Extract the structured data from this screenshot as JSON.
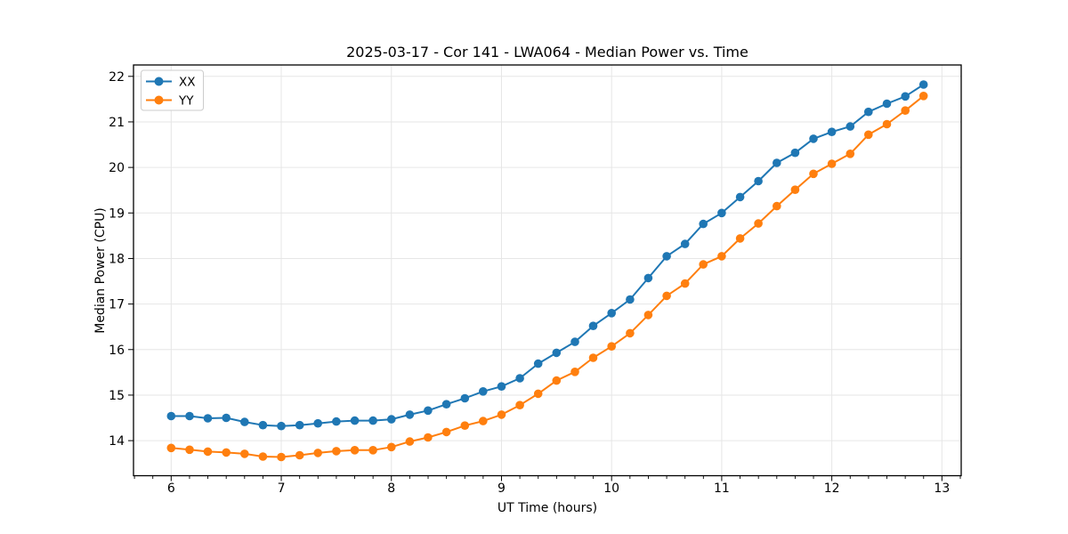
{
  "figure": {
    "background": "#ffffff",
    "text_color": "#000000",
    "spine_color": "#000000"
  },
  "chart_data": {
    "type": "line",
    "title": "2025-03-17 - Cor 141 - LWA064 - Median Power vs. Time",
    "xlabel": "UT Time (hours)",
    "ylabel": "Median Power (CPU)",
    "x": [
      6.0,
      6.167,
      6.333,
      6.5,
      6.667,
      6.833,
      7.0,
      7.167,
      7.333,
      7.5,
      7.667,
      7.833,
      8.0,
      8.167,
      8.333,
      8.5,
      8.667,
      8.833,
      9.0,
      9.167,
      9.333,
      9.5,
      9.667,
      9.833,
      10.0,
      10.167,
      10.333,
      10.5,
      10.667,
      10.833,
      11.0,
      11.167,
      11.333,
      11.5,
      11.667,
      11.833,
      12.0,
      12.167,
      12.333,
      12.5,
      12.667,
      12.833
    ],
    "series": [
      {
        "name": "XX",
        "color": "#1f77b4",
        "values": [
          14.54,
          14.54,
          14.49,
          14.5,
          14.41,
          14.34,
          14.32,
          14.34,
          14.38,
          14.42,
          14.44,
          14.44,
          14.47,
          14.57,
          14.66,
          14.8,
          14.93,
          15.08,
          15.19,
          15.37,
          15.69,
          15.93,
          16.17,
          16.52,
          16.8,
          17.1,
          17.57,
          18.05,
          18.32,
          18.76,
          19.0,
          19.35,
          19.7,
          20.1,
          20.32,
          20.63,
          20.78,
          20.9,
          21.22,
          21.4,
          21.56,
          21.82
        ]
      },
      {
        "name": "YY",
        "color": "#ff7f0e",
        "values": [
          13.84,
          13.8,
          13.76,
          13.74,
          13.71,
          13.65,
          13.64,
          13.68,
          13.73,
          13.77,
          13.79,
          13.79,
          13.86,
          13.98,
          14.07,
          14.19,
          14.33,
          14.43,
          14.57,
          14.78,
          15.03,
          15.32,
          15.51,
          15.82,
          16.07,
          16.36,
          16.76,
          17.18,
          17.45,
          17.87,
          18.05,
          18.44,
          18.77,
          19.15,
          19.51,
          19.86,
          20.08,
          20.3,
          20.72,
          20.95,
          21.25,
          21.57
        ]
      }
    ],
    "xlim": [
      5.658,
      13.175
    ],
    "ylim": [
      13.23,
      22.25
    ],
    "xticks": [
      6,
      7,
      8,
      9,
      10,
      11,
      12,
      13
    ],
    "yticks": [
      14,
      15,
      16,
      17,
      18,
      19,
      20,
      21,
      22
    ],
    "minor_xtick_step": 0.16667,
    "grid": true,
    "grid_color": "#e6e6e6",
    "legend": {
      "position": "upper left",
      "entries": [
        "XX",
        "YY"
      ]
    }
  }
}
